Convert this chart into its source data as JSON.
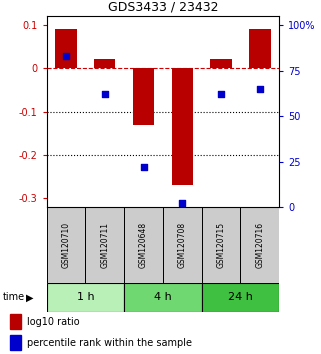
{
  "title": "GDS3433 / 23432",
  "samples": [
    "GSM120710",
    "GSM120711",
    "GSM120648",
    "GSM120708",
    "GSM120715",
    "GSM120716"
  ],
  "log10_ratio": [
    0.09,
    0.02,
    -0.13,
    -0.27,
    0.02,
    0.09
  ],
  "percentile_rank": [
    83,
    62,
    22,
    2,
    62,
    65
  ],
  "ylim_left": [
    -0.32,
    0.12
  ],
  "ylim_right": [
    0,
    105
  ],
  "yticks_left": [
    0.1,
    0.0,
    -0.1,
    -0.2,
    -0.3
  ],
  "yticks_right": [
    100,
    75,
    50,
    25,
    0
  ],
  "groups": [
    {
      "label": "1 h",
      "indices": [
        0,
        1
      ],
      "color": "#b8f0b8"
    },
    {
      "label": "4 h",
      "indices": [
        2,
        3
      ],
      "color": "#70d870"
    },
    {
      "label": "24 h",
      "indices": [
        4,
        5
      ],
      "color": "#40c040"
    }
  ],
  "bar_color": "#b80000",
  "dot_color": "#0000cc",
  "dashed_color": "#cc0000",
  "left_tick_color": "#cc0000",
  "right_tick_color": "#0000cc",
  "legend_red_label": "log10 ratio",
  "legend_blue_label": "percentile rank within the sample",
  "time_label": "time",
  "bar_width": 0.55,
  "dot_size": 25,
  "sample_box_color": "#cccccc"
}
